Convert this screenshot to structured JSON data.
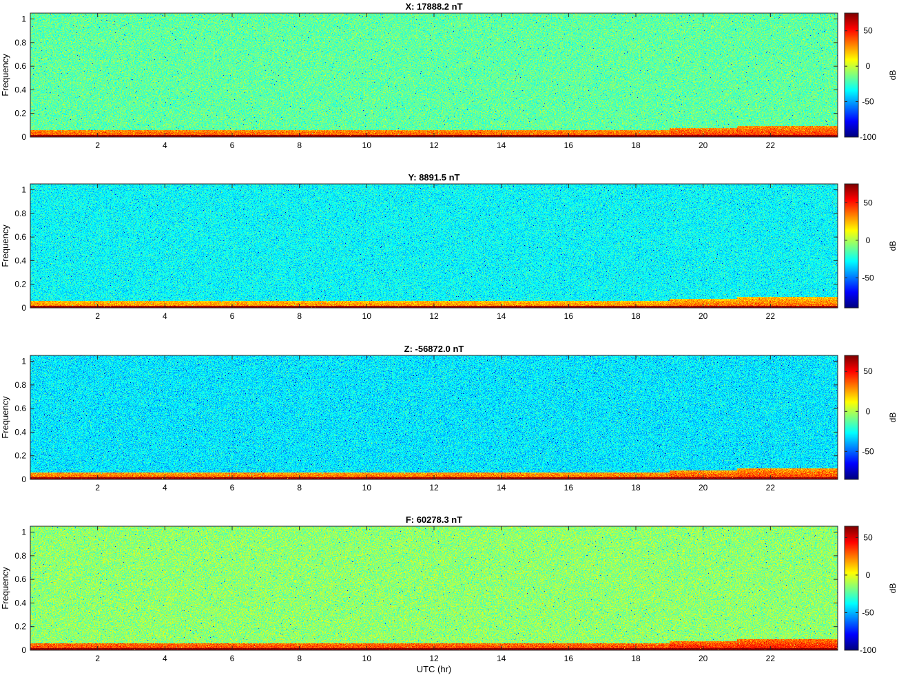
{
  "chart_data": [
    {
      "type": "heatmap",
      "title": "X: 17888.2 nT",
      "ylabel": "Frequency",
      "xlabel": "",
      "colorbar_label": "dB",
      "colormap": "jet",
      "xlim": [
        0,
        24
      ],
      "ylim": [
        0,
        1.05
      ],
      "xticks": [
        2,
        4,
        6,
        8,
        10,
        12,
        14,
        16,
        18,
        20,
        22
      ],
      "xtick_labels": [
        "2",
        "4",
        "6",
        "8",
        "10",
        "12",
        "14",
        "16",
        "18",
        "20",
        "22"
      ],
      "yticks": [
        0,
        0.2,
        0.4,
        0.6,
        0.8,
        1
      ],
      "ytick_labels": [
        "0",
        "0.2",
        "0.4",
        "0.6",
        "0.8",
        "1"
      ],
      "clim": [
        -100,
        75
      ],
      "colorbar_ticks": [
        -100,
        -50,
        0,
        50
      ],
      "colorbar_tick_labels": [
        "-100",
        "-50",
        "0",
        "50"
      ],
      "background_db": -18,
      "noise_db": 8,
      "low_freq_band_db": 28,
      "low_freq_band_top": 0.06,
      "dc_line_db": 70
    },
    {
      "type": "heatmap",
      "title": "Y: 8891.5 nT",
      "ylabel": "Frequency",
      "xlabel": "",
      "colorbar_label": "dB",
      "colormap": "jet",
      "xlim": [
        0,
        24
      ],
      "ylim": [
        0,
        1.05
      ],
      "xticks": [
        2,
        4,
        6,
        8,
        10,
        12,
        14,
        16,
        18,
        20,
        22
      ],
      "xtick_labels": [
        "2",
        "4",
        "6",
        "8",
        "10",
        "12",
        "14",
        "16",
        "18",
        "20",
        "22"
      ],
      "yticks": [
        0,
        0.2,
        0.4,
        0.6,
        0.8,
        1
      ],
      "ytick_labels": [
        "0",
        "0.2",
        "0.4",
        "0.6",
        "0.8",
        "1"
      ],
      "clim": [
        -90,
        75
      ],
      "colorbar_ticks": [
        -50,
        0,
        50
      ],
      "colorbar_tick_labels": [
        "-50",
        "0",
        "50"
      ],
      "background_db": -28,
      "noise_db": 8,
      "low_freq_band_db": 22,
      "low_freq_band_top": 0.06,
      "dc_line_db": 70
    },
    {
      "type": "heatmap",
      "title": "Z: -56872.0 nT",
      "ylabel": "Frequency",
      "xlabel": "",
      "colorbar_label": "dB",
      "colormap": "jet",
      "xlim": [
        0,
        24
      ],
      "ylim": [
        0,
        1.05
      ],
      "xticks": [
        2,
        4,
        6,
        8,
        10,
        12,
        14,
        16,
        18,
        20,
        22
      ],
      "xtick_labels": [
        "2",
        "4",
        "6",
        "8",
        "10",
        "12",
        "14",
        "16",
        "18",
        "20",
        "22"
      ],
      "yticks": [
        0,
        0.2,
        0.4,
        0.6,
        0.8,
        1
      ],
      "ytick_labels": [
        "0",
        "0.2",
        "0.4",
        "0.6",
        "0.8",
        "1"
      ],
      "clim": [
        -85,
        70
      ],
      "colorbar_ticks": [
        -50,
        0,
        50
      ],
      "colorbar_tick_labels": [
        "-50",
        "0",
        "50"
      ],
      "background_db": -30,
      "noise_db": 8,
      "low_freq_band_db": 25,
      "low_freq_band_top": 0.06,
      "dc_line_db": 66
    },
    {
      "type": "heatmap",
      "title": "F: 60278.3 nT",
      "ylabel": "Frequency",
      "xlabel": "UTC (hr)",
      "colorbar_label": "dB",
      "colormap": "jet",
      "xlim": [
        0,
        24
      ],
      "ylim": [
        0,
        1.05
      ],
      "xticks": [
        2,
        4,
        6,
        8,
        10,
        12,
        14,
        16,
        18,
        20,
        22
      ],
      "xtick_labels": [
        "2",
        "4",
        "6",
        "8",
        "10",
        "12",
        "14",
        "16",
        "18",
        "20",
        "22"
      ],
      "yticks": [
        0,
        0.2,
        0.4,
        0.6,
        0.8,
        1
      ],
      "ytick_labels": [
        "0",
        "0.2",
        "0.4",
        "0.6",
        "0.8",
        "1"
      ],
      "clim": [
        -100,
        65
      ],
      "colorbar_ticks": [
        -100,
        -50,
        0,
        50
      ],
      "colorbar_tick_labels": [
        "-100",
        "-50",
        "0",
        "50"
      ],
      "background_db": -15,
      "noise_db": 8,
      "low_freq_band_db": 25,
      "low_freq_band_top": 0.06,
      "dc_line_db": 62
    }
  ]
}
